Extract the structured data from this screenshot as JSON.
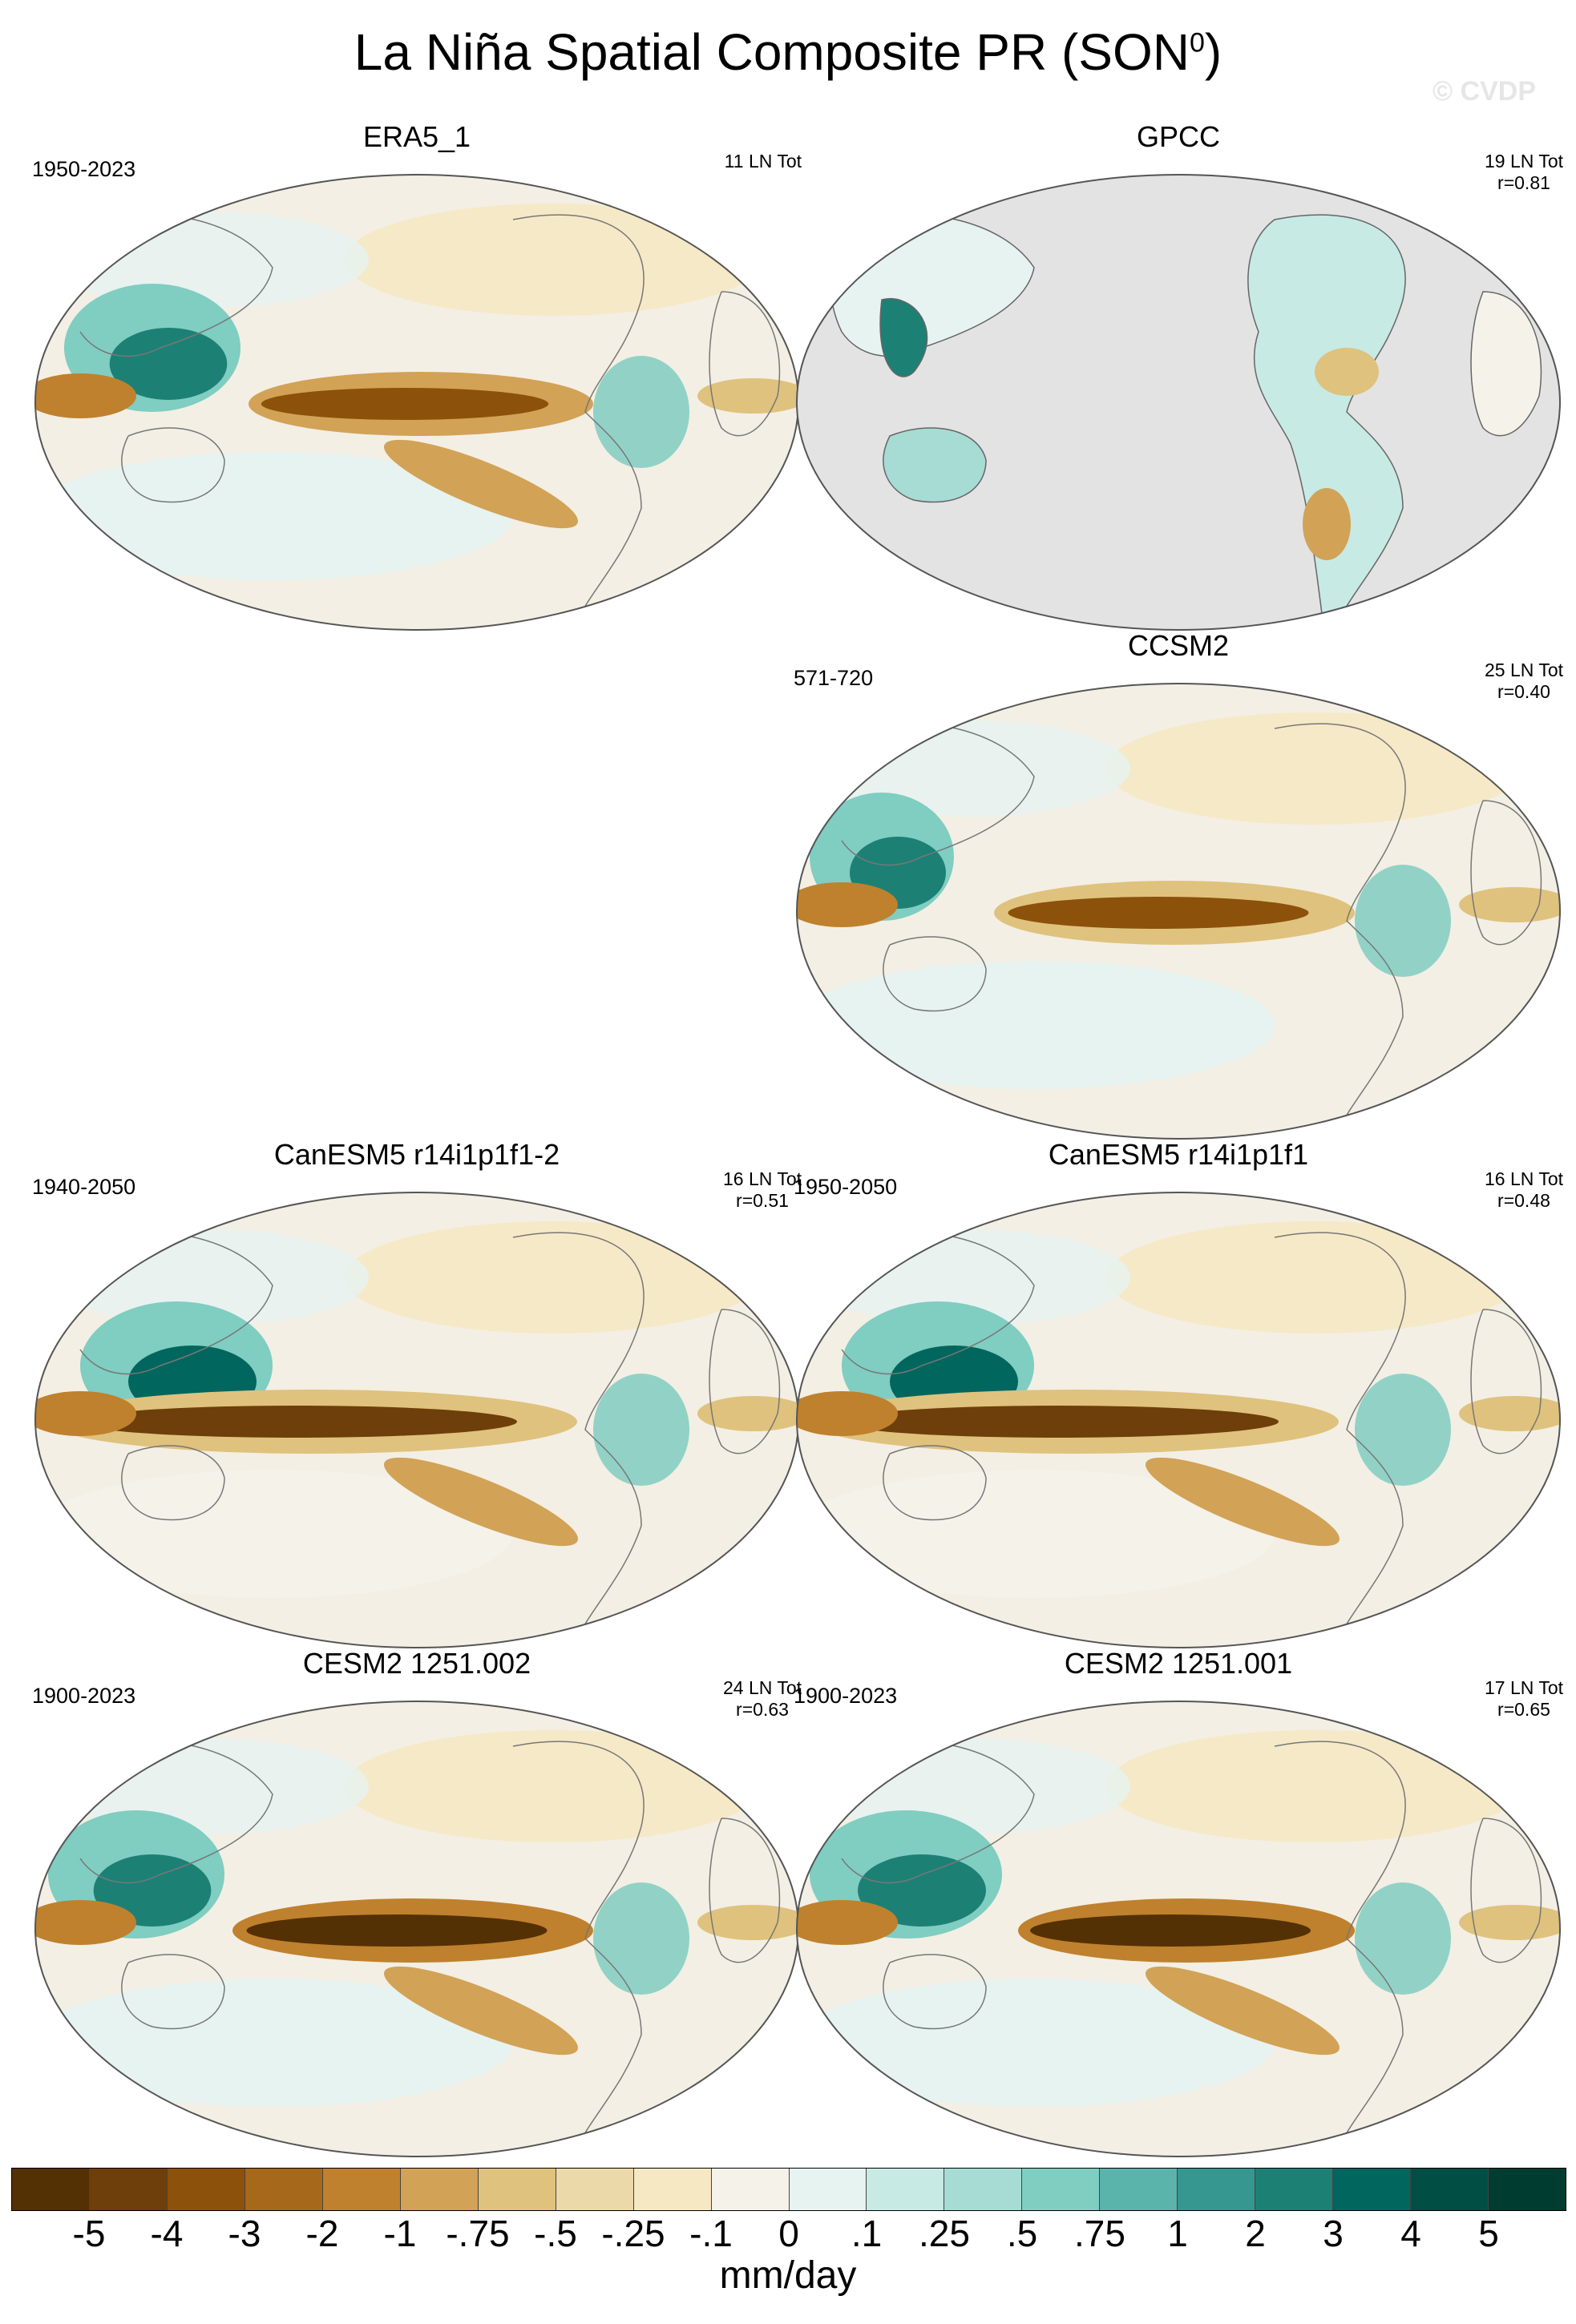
{
  "title": "La Niña Spatial Composite PR (SON",
  "title_sup": "0",
  "title_close": ")",
  "watermark": "© CVDP",
  "panels": [
    {
      "id": "era5",
      "title": "ERA5_1",
      "years": "1950-2023",
      "stats": [
        "11 LN Tot",
        ""
      ],
      "land_only": false
    },
    {
      "id": "gpcc",
      "title": "GPCC",
      "years": "",
      "stats": [
        "19 LN Tot",
        "r=0.81"
      ],
      "land_only": true
    },
    {
      "id": "ccsm2",
      "title": "CCSM2",
      "years": "571-720",
      "stats": [
        "25 LN Tot",
        "r=0.40"
      ],
      "land_only": false
    },
    {
      "id": "canesm5-2",
      "title": "CanESM5 r14i1p1f1-2",
      "years": "1940-2050",
      "stats": [
        "16 LN Tot",
        "r=0.51"
      ],
      "land_only": false
    },
    {
      "id": "canesm5-1",
      "title": "CanESM5 r14i1p1f1",
      "years": "1950-2050",
      "stats": [
        "16 LN Tot",
        "r=0.48"
      ],
      "land_only": false
    },
    {
      "id": "cesm2-002",
      "title": "CESM2 1251.002",
      "years": "1900-2023",
      "stats": [
        "24 LN Tot",
        "r=0.63"
      ],
      "land_only": false
    },
    {
      "id": "cesm2-001",
      "title": "CESM2 1251.001",
      "years": "1900-2023",
      "stats": [
        "17 LN Tot",
        "r=0.65"
      ],
      "land_only": false
    }
  ],
  "colorbar": {
    "colors": [
      "#543005",
      "#6e3f0a",
      "#8c510a",
      "#a6681a",
      "#bf812d",
      "#d2a257",
      "#dfc27d",
      "#ecd9a9",
      "#f6e8c3",
      "#f5f2ea",
      "#e6f3f1",
      "#c7eae5",
      "#a6dcd4",
      "#80cdc1",
      "#5ab4ac",
      "#35978f",
      "#1d8075",
      "#01665e",
      "#014e44",
      "#003c30"
    ],
    "labels": [
      "-5",
      "-4",
      "-3",
      "-2",
      "-1",
      "-.75",
      "-.5",
      "-.25",
      "-.1",
      "0",
      ".1",
      ".25",
      ".5",
      ".75",
      "1",
      "2",
      "3",
      "4",
      "5"
    ],
    "units": "mm/day"
  }
}
